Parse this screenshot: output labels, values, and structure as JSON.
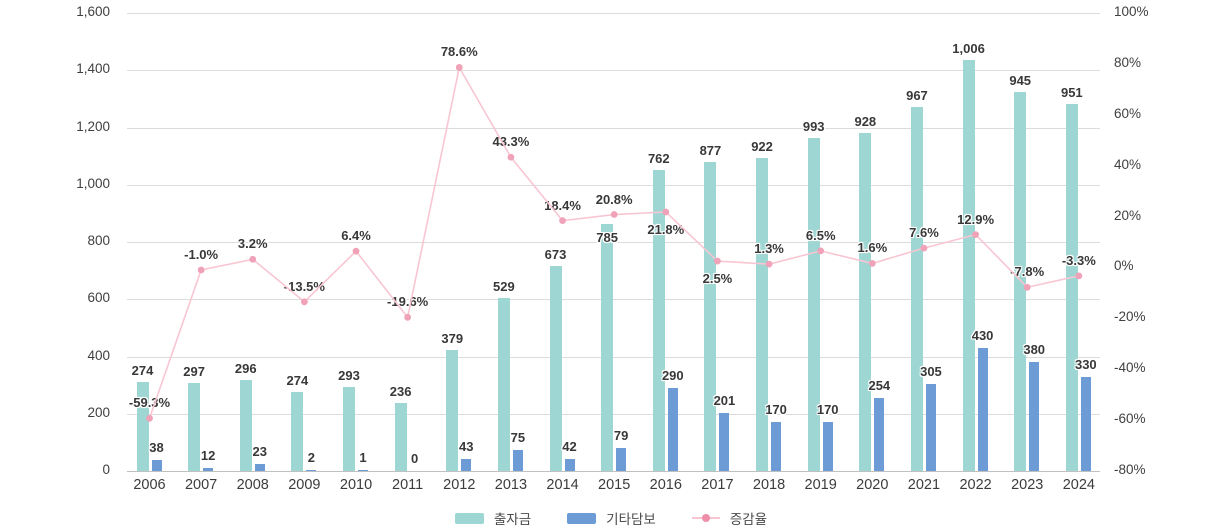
{
  "chart_data": {
    "type": "bar",
    "title": "",
    "categories": [
      "2006",
      "2007",
      "2008",
      "2009",
      "2010",
      "2011",
      "2012",
      "2013",
      "2014",
      "2015",
      "2016",
      "2017",
      "2018",
      "2019",
      "2020",
      "2021",
      "2022",
      "2023",
      "2024"
    ],
    "series": [
      {
        "name": "출자금",
        "type": "bar",
        "color": "#9dd6d2",
        "values": [
          274,
          297,
          296,
          274,
          293,
          236,
          379,
          529,
          673,
          785,
          762,
          877,
          922,
          993,
          928,
          967,
          1006,
          945,
          951
        ]
      },
      {
        "name": "기타담보",
        "type": "bar",
        "color": "#6d9bd5",
        "values": [
          38,
          12,
          23,
          2,
          1,
          0,
          43,
          75,
          42,
          79,
          290,
          201,
          170,
          170,
          254,
          305,
          430,
          380,
          330
        ]
      },
      {
        "name": "증감율",
        "type": "line",
        "axis": "right",
        "color": "#f8c6d2",
        "marker_color": "#f0a2b8",
        "values": [
          -59.3,
          -1.0,
          3.2,
          -13.5,
          6.4,
          -19.6,
          78.6,
          43.3,
          18.4,
          20.8,
          21.8,
          2.5,
          1.3,
          6.5,
          1.6,
          7.6,
          12.9,
          -7.8,
          -3.3
        ]
      }
    ],
    "left_axis": {
      "min": 0,
      "max": 1600,
      "step": 200,
      "ticks": [
        "1,600",
        "1,400",
        "1,200",
        "1,000",
        "800",
        "600",
        "400",
        "200",
        "0"
      ]
    },
    "right_axis": {
      "min": -80,
      "max": 100,
      "step": 20,
      "ticks": [
        "100%",
        "80%",
        "60%",
        "40%",
        "20%",
        "0%",
        "-20%",
        "-40%",
        "-60%",
        "-80%"
      ]
    },
    "grid": true,
    "legend_position": "bottom",
    "render_hints": {
      "teal_bar_pixel_height_equals_sum_of_bar_series": true,
      "percent_label_below_categories": [
        "2016",
        "2017"
      ],
      "value_label_inside_categories": [
        "2015"
      ]
    }
  }
}
